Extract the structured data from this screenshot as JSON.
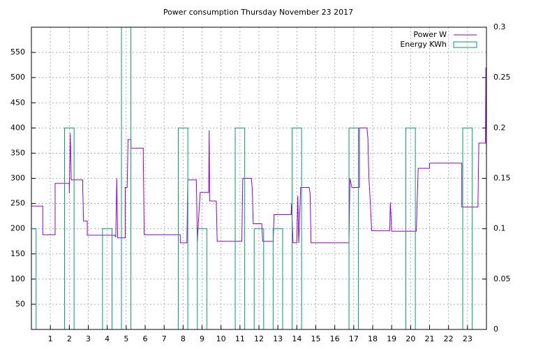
{
  "chart_data": {
    "type": "line",
    "title": "Power consumption Thursday November 23 2017",
    "xlim": [
      0,
      24
    ],
    "xticks": [
      1,
      2,
      3,
      4,
      5,
      6,
      7,
      8,
      9,
      10,
      11,
      12,
      13,
      14,
      15,
      16,
      17,
      18,
      19,
      20,
      21,
      22,
      23
    ],
    "ylim": [
      0,
      600
    ],
    "yticks": [
      50,
      100,
      150,
      200,
      250,
      300,
      350,
      400,
      450,
      500,
      550
    ],
    "y2lim": [
      0,
      0.3
    ],
    "y2ticks": [
      0,
      0.05,
      0.1,
      0.15,
      0.2,
      0.25,
      0.3
    ],
    "grid": true,
    "legend": "top-right",
    "series": [
      {
        "name": "Power W",
        "color": "#9400d3",
        "style": "line",
        "x": [
          0,
          0.6,
          0.6,
          1.25,
          1.25,
          2.0,
          2.0,
          2.05,
          2.1,
          2.7,
          2.7,
          2.75,
          2.95,
          2.95,
          4.4,
          4.45,
          4.5,
          4.55,
          4.95,
          4.95,
          5.05,
          5.1,
          5.25,
          5.25,
          5.9,
          5.9,
          5.95,
          7.85,
          7.85,
          8.2,
          8.25,
          8.7,
          8.75,
          8.9,
          9.35,
          9.38,
          9.4,
          9.75,
          9.8,
          11.1,
          11.15,
          11.6,
          11.65,
          11.7,
          12.15,
          12.2,
          12.75,
          12.8,
          13.7,
          13.72,
          13.8,
          14.0,
          14.05,
          14.1,
          14.2,
          14.65,
          14.7,
          14.75,
          16.75,
          16.8,
          16.9,
          17.3,
          17.3,
          17.7,
          17.75,
          17.8,
          17.85,
          17.95,
          18.9,
          18.93,
          19.0,
          20.3,
          20.4,
          21.0,
          21.0,
          22.7,
          22.7,
          23.55,
          23.6,
          23.95,
          23.97,
          24
        ],
        "values": [
          245,
          245,
          188,
          188,
          290,
          290,
          270,
          390,
          297,
          297,
          290,
          215,
          215,
          187,
          187,
          183,
          300,
          182,
          182,
          282,
          282,
          377,
          377,
          360,
          360,
          348,
          188,
          188,
          172,
          172,
          297,
          297,
          175,
          272,
          272,
          395,
          255,
          255,
          175,
          175,
          300,
          300,
          280,
          210,
          210,
          175,
          175,
          228,
          228,
          250,
          172,
          172,
          265,
          172,
          282,
          282,
          270,
          172,
          172,
          300,
          282,
          282,
          400,
          400,
          378,
          300,
          270,
          196,
          196,
          252,
          195,
          195,
          320,
          320,
          330,
          330,
          243,
          243,
          370,
          370,
          520,
          345
        ]
      },
      {
        "name": "Energy KWh",
        "color": "#009e73",
        "style": "boxes",
        "axis": "y2",
        "x": [
          0,
          1,
          2,
          3,
          4,
          5,
          6,
          7,
          8,
          9,
          10,
          11,
          12,
          13,
          14,
          15,
          16,
          17,
          18,
          19,
          20,
          21,
          22,
          23
        ],
        "values": [
          0.1,
          0,
          0.2,
          0,
          0.1,
          0.3,
          0,
          0,
          0.2,
          0.1,
          0,
          0.2,
          0.1,
          0.1,
          0.2,
          0,
          0,
          0.2,
          0,
          0,
          0.2,
          0,
          0,
          0.2
        ]
      }
    ]
  }
}
